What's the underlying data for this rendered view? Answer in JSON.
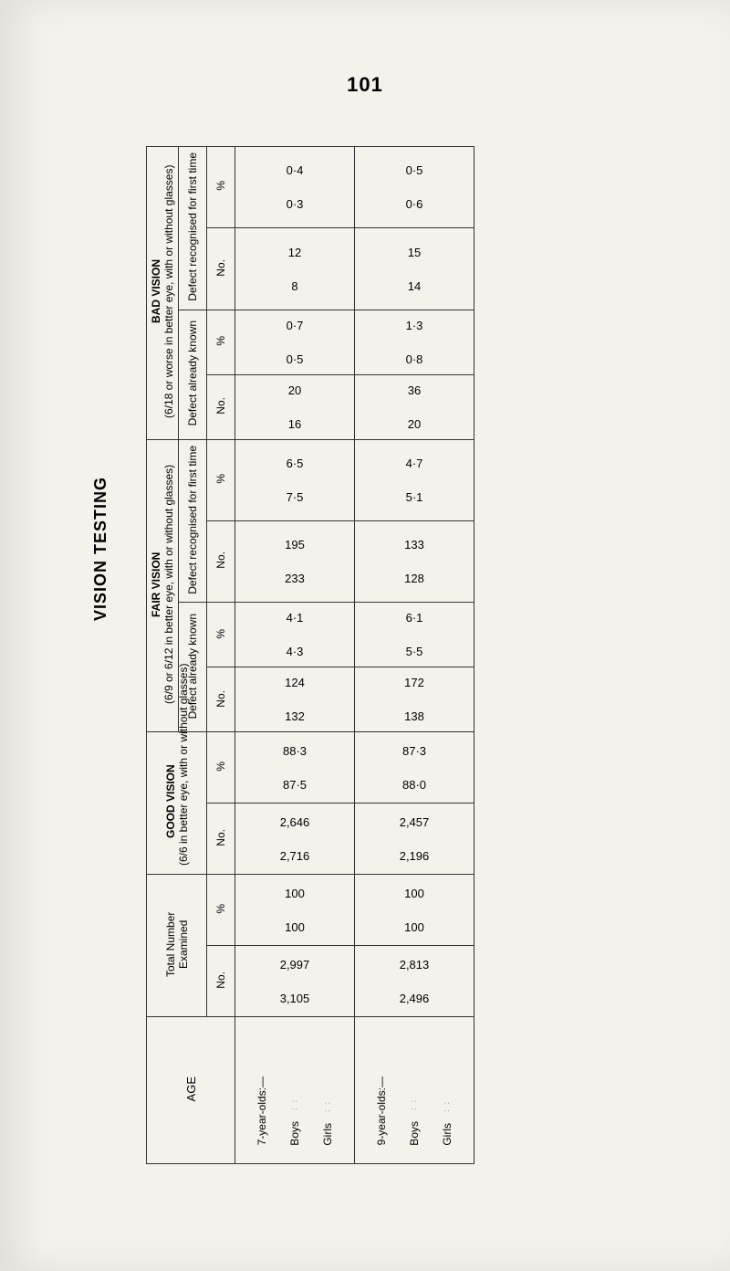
{
  "page_number": "101",
  "title": "VISION TESTING",
  "colors": {
    "background": "#f5f2ec",
    "line": "#333333",
    "text": "#222222"
  },
  "groups": {
    "bad": {
      "label": "BAD VISION",
      "sub": "(6/18 or worse in better eye, with or without glasses)"
    },
    "fair": {
      "label": "FAIR VISION",
      "sub": "(6/9 or 6/12 in better eye, with or without glasses)"
    },
    "good": {
      "label": "GOOD VISION",
      "sub": "(6/6 in better eye, with or without glasses)"
    },
    "total": {
      "label": "Total Number",
      "sub": "Examined"
    }
  },
  "subrows": {
    "recognised": "Defect recognised for first time",
    "already": "Defect already known"
  },
  "measures": {
    "pct": "%",
    "no": "No."
  },
  "age_label": "AGE",
  "cols": {
    "a": {
      "group": "7-year-olds:—",
      "boys": "Boys",
      "girls": "Girls"
    },
    "b": {
      "group": "9-year-olds:—",
      "boys": "Boys",
      "girls": "Girls"
    }
  },
  "data": {
    "bad_rec_pct": {
      "a": [
        "0·4",
        "0·3"
      ],
      "b": [
        "0·5",
        "0·6"
      ]
    },
    "bad_rec_no": {
      "a": [
        "12",
        "8"
      ],
      "b": [
        "15",
        "14"
      ]
    },
    "bad_alr_pct": {
      "a": [
        "0·7",
        "0·5"
      ],
      "b": [
        "1·3",
        "0·8"
      ]
    },
    "bad_alr_no": {
      "a": [
        "20",
        "16"
      ],
      "b": [
        "36",
        "20"
      ]
    },
    "fair_rec_pct": {
      "a": [
        "6·5",
        "7·5"
      ],
      "b": [
        "4·7",
        "5·1"
      ]
    },
    "fair_rec_no": {
      "a": [
        "195",
        "233"
      ],
      "b": [
        "133",
        "128"
      ]
    },
    "fair_alr_pct": {
      "a": [
        "4·1",
        "4·3"
      ],
      "b": [
        "6·1",
        "5·5"
      ]
    },
    "fair_alr_no": {
      "a": [
        "124",
        "132"
      ],
      "b": [
        "172",
        "138"
      ]
    },
    "good_pct": {
      "a": [
        "88·3",
        "87·5"
      ],
      "b": [
        "87·3",
        "88·0"
      ]
    },
    "good_no": {
      "a": [
        "2,646",
        "2,716"
      ],
      "b": [
        "2,457",
        "2,196"
      ]
    },
    "total_pct": {
      "a": [
        "100",
        "100"
      ],
      "b": [
        "100",
        "100"
      ]
    },
    "total_no": {
      "a": [
        "2,997",
        "3,105"
      ],
      "b": [
        "2,813",
        "2,496"
      ]
    }
  }
}
